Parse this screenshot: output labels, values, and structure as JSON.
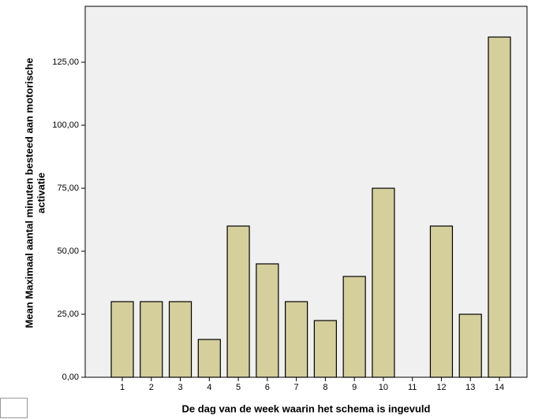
{
  "chart_data": {
    "type": "bar",
    "xlabel": "De dag van de week waarin het schema is ingevuld",
    "ylabel": [
      "Mean Maximaal aantal minuten besteed aan motorische",
      "activatie"
    ],
    "categories": [
      "1",
      "2",
      "3",
      "4",
      "5",
      "6",
      "7",
      "8",
      "9",
      "10",
      "11",
      "12",
      "13",
      "14"
    ],
    "values": [
      30,
      30,
      30,
      15,
      60,
      45,
      30,
      22.5,
      40,
      75,
      0,
      60,
      25,
      135
    ],
    "color": "#d5cf9c",
    "ylim": [
      0,
      147.2
    ],
    "yticks": [
      {
        "value": 0,
        "label": "0,00"
      },
      {
        "value": 25,
        "label": "25,00"
      },
      {
        "value": 50,
        "label": "50,00"
      },
      {
        "value": 75,
        "label": "75,00"
      },
      {
        "value": 100,
        "label": "100,00"
      },
      {
        "value": 125,
        "label": "125,00"
      }
    ],
    "grid": false
  }
}
